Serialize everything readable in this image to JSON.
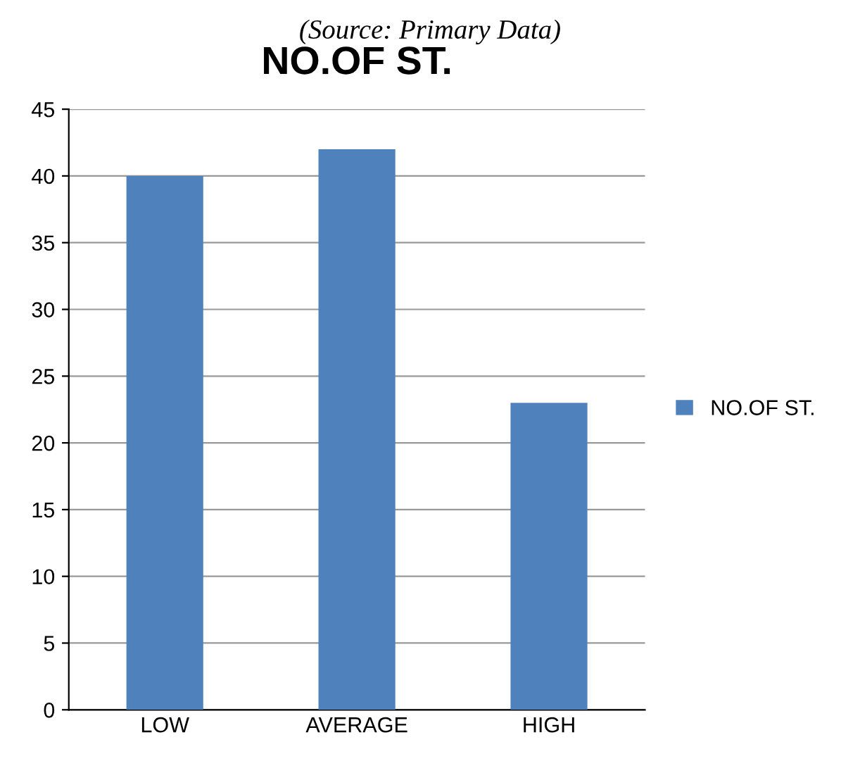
{
  "chart_data": {
    "type": "bar",
    "title": "NO.OF ST.",
    "annotations": [
      "(Source: Primary Data)"
    ],
    "categories": [
      "LOW",
      "AVERAGE",
      "HIGH"
    ],
    "series": [
      {
        "name": "NO.OF ST.",
        "color": "#4f81bd",
        "values": [
          40,
          42,
          23
        ]
      }
    ],
    "ylim": [
      0,
      45
    ],
    "yticks": [
      0,
      5,
      10,
      15,
      20,
      25,
      30,
      35,
      40,
      45
    ],
    "grid": "y",
    "legend": "right"
  }
}
